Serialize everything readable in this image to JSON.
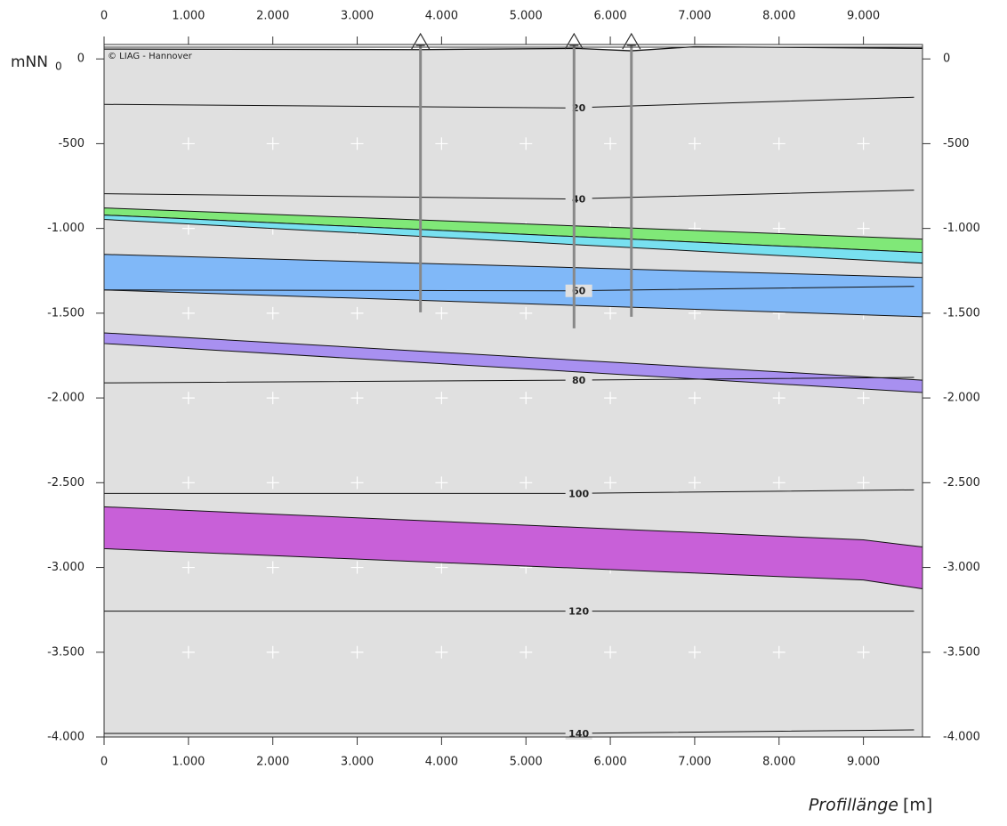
{
  "chart_data": {
    "type": "profile",
    "copyright": "© LIAG - Hannover",
    "ylabel": "mNN",
    "ylabel_sub": "0",
    "xlabel": "Profillänge",
    "xlabel_unit": "[m]",
    "xlim": [
      0,
      9700
    ],
    "ylim": [
      -4000,
      85
    ],
    "xticks": [
      0,
      {
        "value": 1000,
        "label": "1.000"
      },
      {
        "value": 2000,
        "label": "2.000"
      },
      {
        "value": 3000,
        "label": "3.000"
      },
      {
        "value": 4000,
        "label": "4.000"
      },
      {
        "value": 5000,
        "label": "5.000"
      },
      {
        "value": 6000,
        "label": "6.000"
      },
      {
        "value": 7000,
        "label": "7.000"
      },
      {
        "value": 8000,
        "label": "8.000"
      },
      {
        "value": 9000,
        "label": "9.000"
      }
    ],
    "yticks": [
      0,
      -500,
      {
        "value": -1000,
        "label": "-1.000"
      },
      {
        "value": -1500,
        "label": "-1.500"
      },
      {
        "value": -2000,
        "label": "-2.000"
      },
      {
        "value": -2500,
        "label": "-2.500"
      },
      {
        "value": -3000,
        "label": "-3.000"
      },
      {
        "value": -3500,
        "label": "-3.500"
      },
      {
        "value": -4000,
        "label": "-4.000"
      }
    ],
    "grid": "plus",
    "background": "#e0e0e0",
    "surface": {
      "x": [
        0,
        3750,
        5600,
        6250,
        7000,
        9700
      ],
      "values": [
        58,
        55,
        62,
        48,
        72,
        62
      ]
    },
    "layers": [
      {
        "color": "#80e878",
        "x": [
          0,
          9700
        ],
        "top": [
          -879,
          -1063
        ],
        "bottom": [
          -921,
          -1142
        ]
      },
      {
        "color": "#78e0f0",
        "x": [
          0,
          9700
        ],
        "top": [
          -921,
          -1142
        ],
        "bottom": [
          -947,
          -1205
        ]
      },
      {
        "color": "#80b8f8",
        "x": [
          0,
          9700
        ],
        "top": [
          -1153,
          -1289
        ],
        "bottom": [
          -1363,
          -1521
        ]
      },
      {
        "color": "#a890f0",
        "x": [
          0,
          9700
        ],
        "top": [
          -1616,
          -1895
        ],
        "bottom": [
          -1679,
          -1968
        ]
      },
      {
        "color": "#c860d8",
        "x": [
          0,
          9000,
          9700
        ],
        "top": [
          -2642,
          -2837,
          -2879
        ],
        "bottom": [
          -2889,
          -3074,
          -3126
        ]
      }
    ],
    "isolines": [
      {
        "label": 20,
        "x": [
          0,
          5500,
          9600
        ],
        "values": [
          -268,
          -289,
          -226
        ]
      },
      {
        "label": 40,
        "x": [
          0,
          5500,
          9600
        ],
        "values": [
          -795,
          -826,
          -774
        ]
      },
      {
        "label": 60,
        "x": [
          0,
          5500,
          9600
        ],
        "values": [
          -1363,
          -1368,
          -1342
        ]
      },
      {
        "label": 80,
        "x": [
          0,
          5500,
          9600
        ],
        "values": [
          -1911,
          -1895,
          -1879
        ]
      },
      {
        "label": 100,
        "x": [
          0,
          5500,
          9600
        ],
        "values": [
          -2563,
          -2563,
          -2542
        ]
      },
      {
        "label": 120,
        "x": [
          0,
          5500,
          9600
        ],
        "values": [
          -3258,
          -3258,
          -3258
        ]
      },
      {
        "label": 140,
        "x": [
          0,
          5500,
          9600
        ],
        "values": [
          -3979,
          -3979,
          -3958
        ]
      }
    ],
    "wells": [
      {
        "x": 3750,
        "depth": -1495
      },
      {
        "x": 5570,
        "depth": -1589
      },
      {
        "x": 6250,
        "depth": -1521
      }
    ]
  }
}
